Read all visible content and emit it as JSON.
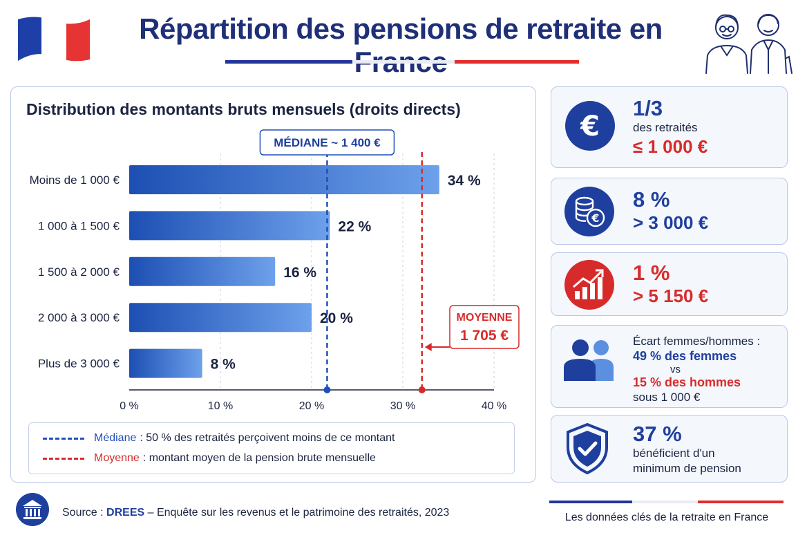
{
  "header": {
    "title": "Répartition des pensions de retraite en France",
    "flag_icon": "french-flag-icon",
    "illustration_icon": "retired-couple-icon"
  },
  "chart_data": {
    "type": "bar",
    "orientation": "horizontal",
    "title": "Distribution des montants bruts mensuels (droits directs)",
    "categories": [
      "Moins de 1 000 €",
      "1 000 à 1 500 €",
      "1 500 à 2 000 €",
      "2 000 à 3 000 €",
      "Plus de 3 000 €"
    ],
    "values": [
      34,
      22,
      16,
      20,
      8
    ],
    "value_labels": [
      "34 %",
      "22 %",
      "16 %",
      "20 %",
      "8 %"
    ],
    "xlim": [
      0,
      40
    ],
    "xticks": [
      0,
      10,
      20,
      30,
      40
    ],
    "xtick_labels": [
      "0 %",
      "10 %",
      "20 %",
      "30 %",
      "40 %"
    ],
    "grid": true,
    "reference_lines": [
      {
        "id": "median",
        "x": 21.7,
        "label": "MÉDIANE ~ 1 400 €",
        "color": "#1f4fb8"
      },
      {
        "id": "mean",
        "x": 32.1,
        "label_line1": "MOYENNE",
        "label_line2": "1 705 €",
        "color": "#d72b2b"
      }
    ],
    "colors": {
      "bar_start": "#1d4fb3",
      "bar_end": "#6da1eb",
      "grid": "#c9d1df",
      "axis": "#1a2340"
    }
  },
  "legend": {
    "median_accent": "Médiane",
    "median_text": ": 50 % des retraités perçoivent moins de ce montant",
    "mean_accent": "Moyenne",
    "mean_text": ": montant moyen de la pension brute mensuelle"
  },
  "stats": {
    "one_third": {
      "icon": "euro-icon",
      "big": "1/3",
      "line1": "des retraités",
      "line2": "≤ 1 000 €"
    },
    "eight": {
      "icon": "coin-stack-icon",
      "big": "8 %",
      "line1": "> 3 000 €"
    },
    "one": {
      "icon": "growth-chart-icon",
      "big": "1 %",
      "line1": "> 5 150 €"
    },
    "gender": {
      "icon": "people-icon",
      "title": "Écart femmes/hommes :",
      "women": "49 % des femmes",
      "vs": "vs",
      "men": "15 % des hommes",
      "below": "sous 1 000 €"
    },
    "minimum": {
      "icon": "shield-check-icon",
      "big": "37 %",
      "line1": "bénéficient d'un",
      "line2": "minimum de pension"
    }
  },
  "footer": {
    "source_prefix": "Source :",
    "source_org": "DREES",
    "source_text": "– Enquête sur les revenus et le patrimoine des retraités, 2023",
    "tagline": "Les données clés de la retraite en France",
    "institution_icon": "institution-icon"
  }
}
